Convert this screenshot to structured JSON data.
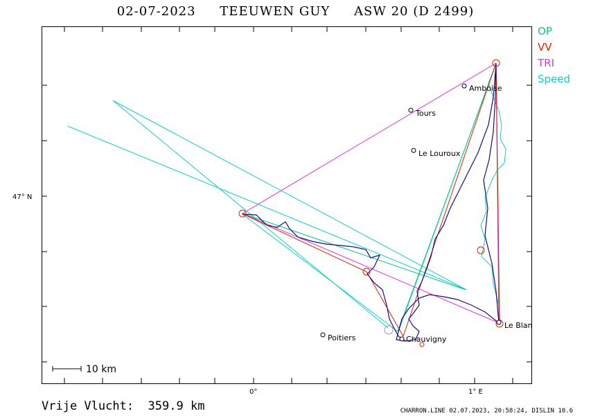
{
  "header": {
    "date": "02-07-2023",
    "pilot": "TEEUWEN GUY",
    "glider": "ASW 20 (D 2499)"
  },
  "legend": {
    "items": [
      {
        "label": "OP",
        "color": "#00cc88"
      },
      {
        "label": "VV",
        "color": "#dd2200"
      },
      {
        "label": "TRI",
        "color": "#dd33dd"
      },
      {
        "label": "Speed",
        "color": "#11cccc"
      }
    ]
  },
  "axes": {
    "lat_label": "47° N",
    "lon_label_0": "0°",
    "lon_label_1": "1° E"
  },
  "scale_bar": {
    "label": "10 km"
  },
  "towns": [
    {
      "name": "Amboise"
    },
    {
      "name": "Tours"
    },
    {
      "name": "Le Louroux"
    },
    {
      "name": "Poitiers"
    },
    {
      "name": "Chauvigny"
    },
    {
      "name": "Le Blanc"
    }
  ],
  "summary": {
    "label": "Vrije Vlucht:",
    "value": "359.9 km"
  },
  "footer": "CHARRON.LINE 02.07.2023, 20:58:24, DISLIN 10.6",
  "colors": {
    "op": "#00cc88",
    "vv": "#dd2200",
    "tri": "#dd33dd",
    "speed": "#11cccc",
    "track": "#1a0a80"
  }
}
